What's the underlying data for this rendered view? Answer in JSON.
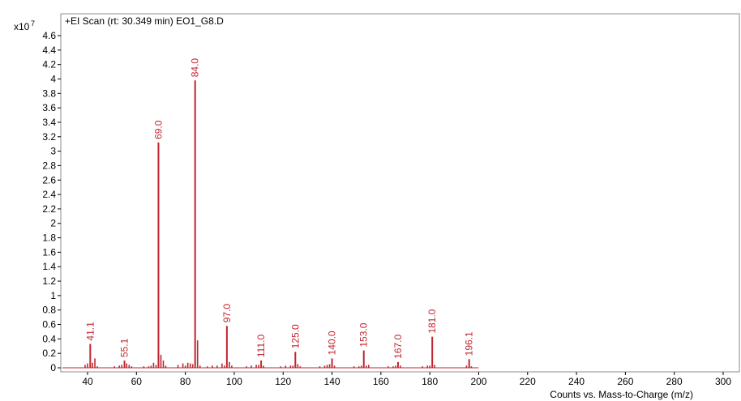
{
  "chart_data": {
    "type": "bar",
    "title": "+EI Scan (rt: 30.349 min) EO1_G8.D",
    "y_scale_label": "x10",
    "y_scale_exponent": "7",
    "xlabel": "Counts vs. Mass-to-Charge (m/z)",
    "ylabel": "",
    "xlim": [
      30,
      303
    ],
    "ylim": [
      0,
      4.7
    ],
    "grid": false,
    "color": "#c0262f",
    "x_ticks": [
      40,
      60,
      80,
      100,
      120,
      140,
      160,
      180,
      200,
      220,
      240,
      260,
      280,
      300
    ],
    "y_ticks": [
      0,
      0.2,
      0.4,
      0.6,
      0.8,
      1,
      1.2,
      1.4,
      1.6,
      1.8,
      2,
      2.2,
      2.4,
      2.6,
      2.8,
      3,
      3.2,
      3.4,
      3.6,
      3.8,
      4,
      4.2,
      4.4,
      4.6
    ],
    "labeled_peaks": [
      {
        "x": 41.1,
        "y": 0.33,
        "label": "41.1"
      },
      {
        "x": 55.1,
        "y": 0.1,
        "label": "55.1"
      },
      {
        "x": 69.0,
        "y": 3.12,
        "label": "69.0"
      },
      {
        "x": 84.0,
        "y": 3.98,
        "label": "84.0"
      },
      {
        "x": 97.0,
        "y": 0.58,
        "label": "97.0"
      },
      {
        "x": 111.0,
        "y": 0.1,
        "label": "111.0"
      },
      {
        "x": 125.0,
        "y": 0.22,
        "label": "125.0"
      },
      {
        "x": 140.0,
        "y": 0.13,
        "label": "140.0"
      },
      {
        "x": 153.0,
        "y": 0.24,
        "label": "153.0"
      },
      {
        "x": 167.0,
        "y": 0.08,
        "label": "167.0"
      },
      {
        "x": 181.0,
        "y": 0.43,
        "label": "181.0"
      },
      {
        "x": 196.1,
        "y": 0.12,
        "label": "196.1"
      }
    ],
    "minor_peaks": [
      {
        "x": 39,
        "y": 0.04
      },
      {
        "x": 40,
        "y": 0.06
      },
      {
        "x": 42,
        "y": 0.07
      },
      {
        "x": 43,
        "y": 0.13
      },
      {
        "x": 44,
        "y": 0.02
      },
      {
        "x": 51,
        "y": 0.02
      },
      {
        "x": 53,
        "y": 0.03
      },
      {
        "x": 54,
        "y": 0.04
      },
      {
        "x": 56,
        "y": 0.06
      },
      {
        "x": 57,
        "y": 0.04
      },
      {
        "x": 58,
        "y": 0.02
      },
      {
        "x": 63,
        "y": 0.02
      },
      {
        "x": 65,
        "y": 0.02
      },
      {
        "x": 66,
        "y": 0.03
      },
      {
        "x": 67,
        "y": 0.07
      },
      {
        "x": 68,
        "y": 0.04
      },
      {
        "x": 70,
        "y": 0.18
      },
      {
        "x": 71,
        "y": 0.1
      },
      {
        "x": 72,
        "y": 0.03
      },
      {
        "x": 77,
        "y": 0.04
      },
      {
        "x": 79,
        "y": 0.06
      },
      {
        "x": 80,
        "y": 0.03
      },
      {
        "x": 81,
        "y": 0.07
      },
      {
        "x": 82,
        "y": 0.06
      },
      {
        "x": 83,
        "y": 0.05
      },
      {
        "x": 85,
        "y": 0.38
      },
      {
        "x": 86,
        "y": 0.03
      },
      {
        "x": 89,
        "y": 0.02
      },
      {
        "x": 91,
        "y": 0.03
      },
      {
        "x": 93,
        "y": 0.03
      },
      {
        "x": 95,
        "y": 0.06
      },
      {
        "x": 96,
        "y": 0.03
      },
      {
        "x": 98,
        "y": 0.08
      },
      {
        "x": 99,
        "y": 0.03
      },
      {
        "x": 105,
        "y": 0.02
      },
      {
        "x": 107,
        "y": 0.03
      },
      {
        "x": 109,
        "y": 0.04
      },
      {
        "x": 110,
        "y": 0.04
      },
      {
        "x": 112,
        "y": 0.03
      },
      {
        "x": 119,
        "y": 0.02
      },
      {
        "x": 121,
        "y": 0.03
      },
      {
        "x": 123,
        "y": 0.03
      },
      {
        "x": 124,
        "y": 0.03
      },
      {
        "x": 126,
        "y": 0.05
      },
      {
        "x": 127,
        "y": 0.02
      },
      {
        "x": 135,
        "y": 0.02
      },
      {
        "x": 137,
        "y": 0.03
      },
      {
        "x": 138,
        "y": 0.04
      },
      {
        "x": 139,
        "y": 0.05
      },
      {
        "x": 141,
        "y": 0.03
      },
      {
        "x": 149,
        "y": 0.02
      },
      {
        "x": 151,
        "y": 0.02
      },
      {
        "x": 152,
        "y": 0.03
      },
      {
        "x": 154,
        "y": 0.03
      },
      {
        "x": 155,
        "y": 0.04
      },
      {
        "x": 163,
        "y": 0.02
      },
      {
        "x": 165,
        "y": 0.02
      },
      {
        "x": 166,
        "y": 0.03
      },
      {
        "x": 168,
        "y": 0.03
      },
      {
        "x": 177,
        "y": 0.02
      },
      {
        "x": 179,
        "y": 0.03
      },
      {
        "x": 180,
        "y": 0.03
      },
      {
        "x": 182,
        "y": 0.04
      },
      {
        "x": 195,
        "y": 0.03
      },
      {
        "x": 197,
        "y": 0.02
      }
    ]
  }
}
